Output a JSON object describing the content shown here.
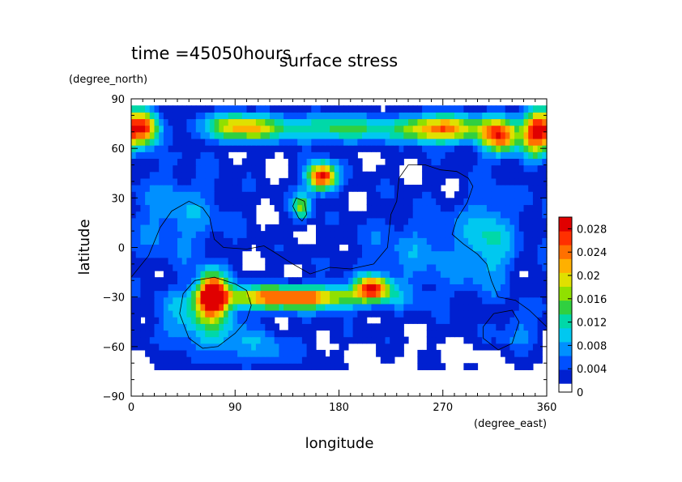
{
  "chart_data": {
    "type": "heatmap",
    "title": "surface stress",
    "time_label": "time =45050hours",
    "xlabel": "longitude",
    "ylabel": "latitude",
    "xunits": "(degree_east)",
    "yunits": "(degree_north)",
    "xlim": [
      0,
      360
    ],
    "ylim": [
      -90,
      90
    ],
    "xticks": [
      0,
      90,
      180,
      270,
      360
    ],
    "yticks": [
      90,
      60,
      30,
      0,
      -30,
      -60,
      -90
    ],
    "xtick_labels": [
      "0",
      "90",
      "180",
      "270",
      "360"
    ],
    "ytick_labels": [
      "90",
      "60",
      "30",
      "0",
      "−30",
      "−60",
      "−90"
    ],
    "colorbar": {
      "range": [
        0,
        0.03
      ],
      "tick_values": [
        0,
        0.004,
        0.008,
        0.012,
        0.016,
        0.02,
        0.024,
        0.028
      ],
      "tick_labels": [
        "0",
        "0.004",
        "0.008",
        "0.012",
        "0.016",
        "0.02",
        "0.024",
        "0.028"
      ],
      "colors": [
        "#ffffff",
        "#0020d0",
        "#0050ff",
        "#0090ff",
        "#00c8f0",
        "#00d8a8",
        "#30d040",
        "#90e000",
        "#e0e000",
        "#ffb000",
        "#ff7000",
        "#ff3000",
        "#e00000"
      ]
    },
    "features": [
      {
        "lon": 10,
        "lat": 73,
        "amp": 0.026,
        "slon": 10,
        "slat": 8
      },
      {
        "lon": 95,
        "lat": 73,
        "amp": 0.019,
        "slon": 25,
        "slat": 6
      },
      {
        "lon": 180,
        "lat": 72,
        "amp": 0.013,
        "slon": 40,
        "slat": 6
      },
      {
        "lon": 270,
        "lat": 72,
        "amp": 0.023,
        "slon": 25,
        "slat": 6
      },
      {
        "lon": 320,
        "lat": 68,
        "amp": 0.024,
        "slon": 12,
        "slat": 8
      },
      {
        "lon": 350,
        "lat": 70,
        "amp": 0.024,
        "slon": 8,
        "slat": 10
      },
      {
        "lon": 165,
        "lat": 43,
        "amp": 0.028,
        "slon": 9,
        "slat": 6
      },
      {
        "lon": 148,
        "lat": 25,
        "amp": 0.014,
        "slon": 6,
        "slat": 6
      },
      {
        "lon": 70,
        "lat": -28,
        "amp": 0.029,
        "slon": 9,
        "slat": 9
      },
      {
        "lon": 140,
        "lat": -30,
        "amp": 0.024,
        "slon": 45,
        "slat": 5
      },
      {
        "lon": 210,
        "lat": -24,
        "amp": 0.022,
        "slon": 10,
        "slat": 5
      },
      {
        "lon": 60,
        "lat": -45,
        "amp": 0.009,
        "slon": 25,
        "slat": 12
      },
      {
        "lon": 110,
        "lat": -62,
        "amp": 0.006,
        "slon": 30,
        "slat": 8
      },
      {
        "lon": 40,
        "lat": 20,
        "amp": 0.006,
        "slon": 30,
        "slat": 20
      },
      {
        "lon": 310,
        "lat": 5,
        "amp": 0.008,
        "slon": 15,
        "slat": 20
      },
      {
        "lon": 250,
        "lat": -5,
        "amp": 0.005,
        "slon": 40,
        "slat": 20
      },
      {
        "lon": 335,
        "lat": -50,
        "amp": 0.005,
        "slon": 12,
        "slat": 10
      }
    ],
    "coastlines": [
      [
        [
          0,
          -18
        ],
        [
          15,
          -5
        ],
        [
          25,
          12
        ],
        [
          35,
          22
        ],
        [
          50,
          28
        ],
        [
          62,
          24
        ],
        [
          68,
          18
        ],
        [
          72,
          5
        ],
        [
          80,
          0
        ],
        [
          100,
          -1
        ],
        [
          115,
          1
        ],
        [
          122,
          -2
        ],
        [
          140,
          -10
        ],
        [
          155,
          -16
        ],
        [
          172,
          -12
        ],
        [
          190,
          -13
        ],
        [
          210,
          -10
        ],
        [
          222,
          0
        ],
        [
          225,
          20
        ],
        [
          230,
          28
        ],
        [
          232,
          42
        ],
        [
          240,
          50
        ],
        [
          255,
          50
        ],
        [
          268,
          47
        ],
        [
          282,
          46
        ],
        [
          292,
          42
        ],
        [
          296,
          37
        ],
        [
          291,
          27
        ],
        [
          282,
          17
        ],
        [
          278,
          8
        ],
        [
          288,
          2
        ],
        [
          300,
          -4
        ],
        [
          308,
          -10
        ],
        [
          312,
          -20
        ],
        [
          318,
          -30
        ],
        [
          333,
          -32
        ],
        [
          345,
          -38
        ],
        [
          360,
          -48
        ]
      ],
      [
        [
          55,
          -20
        ],
        [
          45,
          -28
        ],
        [
          42,
          -40
        ],
        [
          50,
          -55
        ],
        [
          62,
          -61
        ],
        [
          75,
          -60
        ],
        [
          90,
          -52
        ],
        [
          100,
          -44
        ],
        [
          104,
          -35
        ],
        [
          100,
          -26
        ],
        [
          90,
          -22
        ],
        [
          72,
          -18
        ],
        [
          55,
          -20
        ]
      ],
      [
        [
          145,
          18
        ],
        [
          140,
          25
        ],
        [
          143,
          30
        ],
        [
          150,
          28
        ],
        [
          152,
          20
        ],
        [
          148,
          16
        ],
        [
          145,
          18
        ]
      ],
      [
        [
          314,
          -40
        ],
        [
          305,
          -48
        ],
        [
          305,
          -55
        ],
        [
          318,
          -62
        ],
        [
          330,
          -58
        ],
        [
          336,
          -45
        ],
        [
          330,
          -38
        ],
        [
          314,
          -40
        ]
      ]
    ]
  }
}
